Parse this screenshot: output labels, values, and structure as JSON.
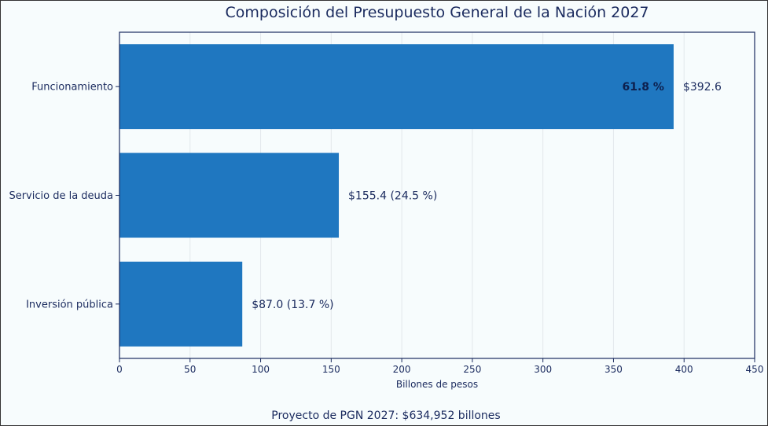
{
  "chart_data": {
    "type": "bar",
    "orientation": "horizontal",
    "title": "Composición del Presupuesto General de la Nación 2027",
    "xlabel": "Billones de pesos",
    "ylabel": "",
    "xlim": [
      0,
      450
    ],
    "xticks": [
      0,
      50,
      100,
      150,
      200,
      250,
      300,
      350,
      400,
      450
    ],
    "grid": "vertical",
    "bar_color": "#1f77c0",
    "text_color": "#1a2a5e",
    "categories": [
      "Funcionamiento",
      "Servicio de la deuda",
      "Inversión pública"
    ],
    "values": [
      392.6,
      155.4,
      87.0
    ],
    "value_labels": [
      "$392.6",
      "$155.4  (24.5 %)",
      "$87.0  (13.7 %)"
    ],
    "inside_labels": [
      "61.8 %",
      "",
      ""
    ],
    "footer": "Proyecto de PGN 2027: $634,952 billones"
  }
}
